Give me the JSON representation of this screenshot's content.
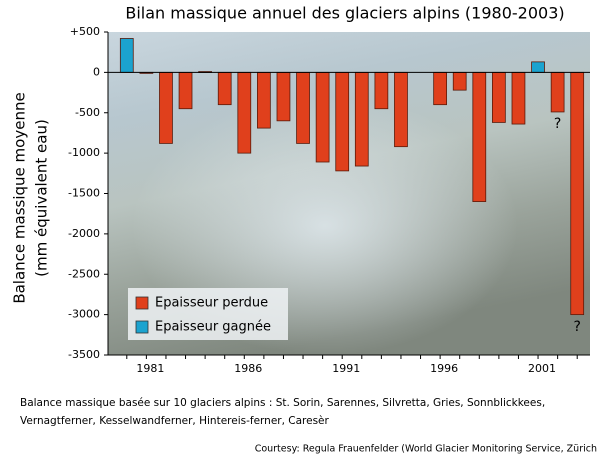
{
  "chart_data": {
    "type": "bar",
    "title": "Bilan massique annuel des glaciers alpins (1980-2003)",
    "y_label": [
      "Balance massique moyenne",
      "(mm équivalent eau)"
    ],
    "categories": [
      null,
      "1981",
      null,
      null,
      null,
      null,
      "1986",
      null,
      null,
      null,
      null,
      "1991",
      null,
      null,
      null,
      null,
      "1996",
      null,
      null,
      null,
      null,
      "2001",
      null,
      null
    ],
    "series": [
      {
        "name": "Epaisseur perdue",
        "color": "#e0401c",
        "values": [
          null,
          -10,
          -880,
          -450,
          null,
          -400,
          -1000,
          -690,
          -600,
          -880,
          -1110,
          -1220,
          -1160,
          -450,
          -920,
          null,
          -400,
          -220,
          -1600,
          -620,
          -640,
          null,
          -490,
          -3000
        ]
      },
      {
        "name": "Epaisseur gagnée",
        "color": "#1ba3cf",
        "values": [
          420,
          null,
          null,
          null,
          10,
          null,
          null,
          null,
          null,
          null,
          null,
          null,
          null,
          null,
          null,
          null,
          null,
          null,
          null,
          null,
          null,
          130,
          null,
          null
        ]
      }
    ],
    "ylim": [
      -3500,
      500
    ],
    "yticks": [
      {
        "value": 500,
        "label": "+500"
      },
      0,
      -500,
      -1000,
      -1500,
      -2000,
      -2500,
      -3000,
      -3500
    ],
    "annotations": [
      "?",
      "?"
    ],
    "notes": [
      "Balance massique basée sur 10 glaciers alpins : St. Sorin, Sarennes, Silvretta, Gries, Sonnblickkees,",
      "Vernagtferner, Kesselwandferner, Hintereis-ferner, Caresèr"
    ],
    "credit": "Courtesy: Regula Frauenfelder (World Glacier Monitoring Service, Zürich"
  }
}
